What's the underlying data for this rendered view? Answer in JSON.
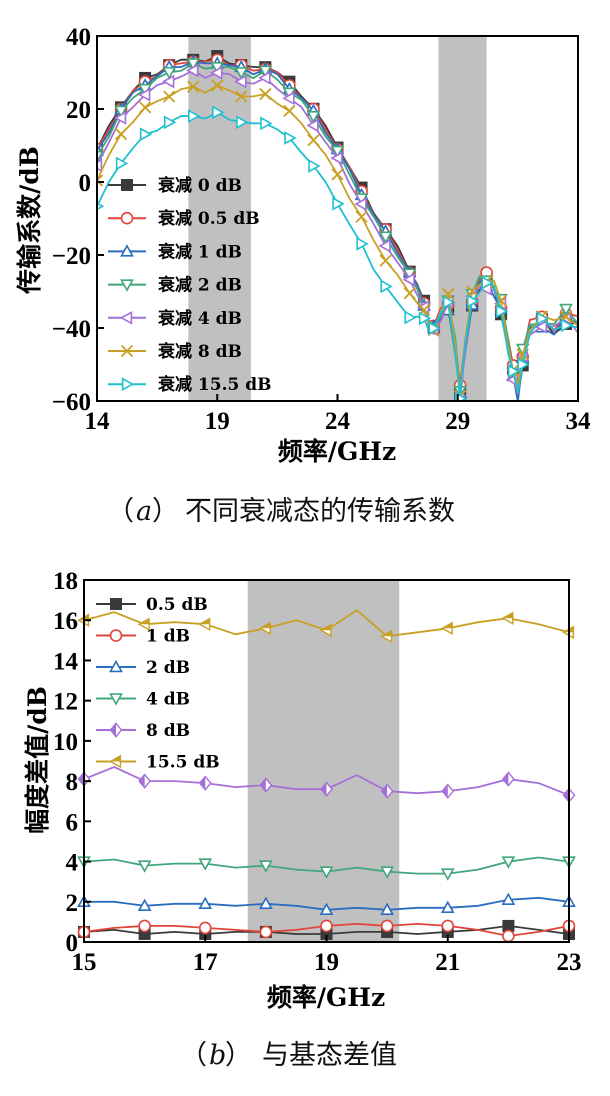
{
  "captions": {
    "a_label": "a",
    "a_text": "不同衰减态的传输系数",
    "b_label": "b",
    "b_text": "与基态差值"
  },
  "chart_data": [
    {
      "type": "line",
      "id": "a",
      "xlabel": "频率/GHz",
      "ylabel": "传输系数/dB",
      "xlim": [
        14,
        34
      ],
      "ylim": [
        -60,
        40
      ],
      "xticks": [
        "14",
        "19",
        "24",
        "29",
        "34"
      ],
      "yticks": [
        "−60",
        "−40",
        "−20",
        "0",
        "20",
        "40"
      ],
      "shaded_ranges": [
        [
          17.8,
          20.4
        ],
        [
          28.2,
          30.2
        ]
      ],
      "legend_position": "center-left",
      "base_x": [
        14,
        14.5,
        15,
        15.5,
        16,
        16.5,
        17,
        17.5,
        18,
        18.5,
        19,
        19.5,
        20,
        20.5,
        21,
        21.5,
        22,
        22.5,
        23,
        23.5,
        24,
        24.5,
        25,
        25.5,
        26,
        26.5,
        27,
        27.3,
        27.6,
        27.8,
        28
      ],
      "base_y": [
        9,
        15,
        21,
        25,
        28,
        30,
        32,
        33,
        34,
        33,
        34,
        33,
        32,
        31,
        32,
        30,
        27,
        24,
        20,
        15,
        10,
        4,
        -2,
        -8,
        -13,
        -18,
        -24,
        -28,
        -33,
        -38,
        -40
      ],
      "notch_x": [
        28,
        28.3,
        28.6,
        28.9,
        29.1,
        29.3,
        29.6,
        29.9,
        30.2,
        30.5,
        30.8,
        31.1,
        31.3,
        31.5,
        31.7,
        32,
        32.5,
        33,
        33.5,
        34
      ],
      "notch_y": [
        -40,
        -36,
        -33,
        -45,
        -58,
        -45,
        -32,
        -28,
        -27,
        -29,
        -34,
        -45,
        -52,
        -58,
        -48,
        -40,
        -38,
        -40,
        -37,
        -39
      ],
      "series": [
        {
          "name": "衰减 0 dB",
          "offset": 0,
          "color": "#3a3a3a",
          "marker": "square-filled"
        },
        {
          "name": "衰减 0.5 dB",
          "offset": -0.5,
          "color": "#e0443a",
          "marker": "circle-open"
        },
        {
          "name": "衰减 1 dB",
          "offset": -1,
          "color": "#2a6ebf",
          "marker": "triangle-up-open"
        },
        {
          "name": "衰减 2 dB",
          "offset": -2,
          "color": "#3fa77a",
          "marker": "triangle-down-open"
        },
        {
          "name": "衰减 4 dB",
          "offset": -4,
          "color": "#a56fd8",
          "marker": "triangle-left-open"
        },
        {
          "name": "衰减 8 dB",
          "offset": -8,
          "color": "#c8a024",
          "marker": "x-cross"
        },
        {
          "name": "衰减 15.5 dB",
          "offset": -15.5,
          "color": "#20c0d0",
          "marker": "triangle-right-open"
        }
      ]
    },
    {
      "type": "line",
      "id": "b",
      "xlabel": "频率/GHz",
      "ylabel": "幅度差值/dB",
      "xlim": [
        15,
        23
      ],
      "ylim": [
        0,
        18
      ],
      "xticks": [
        "15",
        "17",
        "19",
        "21",
        "23"
      ],
      "yticks": [
        "0",
        "2",
        "4",
        "6",
        "8",
        "10",
        "12",
        "14",
        "16",
        "18"
      ],
      "shaded_ranges": [
        [
          17.7,
          20.2
        ]
      ],
      "legend_position": "top-left",
      "x": [
        15,
        15.5,
        16,
        16.5,
        17,
        17.5,
        18,
        18.5,
        19,
        19.5,
        20,
        20.5,
        21,
        21.5,
        22,
        22.5,
        23
      ],
      "series": [
        {
          "name": "0.5 dB",
          "color": "#3a3a3a",
          "marker": "square-filled",
          "values": [
            0.5,
            0.6,
            0.4,
            0.5,
            0.4,
            0.5,
            0.5,
            0.4,
            0.4,
            0.5,
            0.5,
            0.4,
            0.5,
            0.6,
            0.8,
            0.6,
            0.4
          ]
        },
        {
          "name": "1 dB",
          "color": "#e0443a",
          "marker": "circle-open",
          "values": [
            0.5,
            0.7,
            0.8,
            0.8,
            0.7,
            0.6,
            0.5,
            0.6,
            0.8,
            0.9,
            0.8,
            0.9,
            0.8,
            0.6,
            0.3,
            0.5,
            0.8
          ]
        },
        {
          "name": "2 dB",
          "color": "#2a6ebf",
          "marker": "triangle-up-open",
          "values": [
            2.0,
            2.0,
            1.8,
            1.9,
            1.9,
            1.8,
            1.9,
            1.8,
            1.6,
            1.7,
            1.6,
            1.7,
            1.7,
            1.8,
            2.1,
            2.2,
            2.0
          ]
        },
        {
          "name": "4 dB",
          "color": "#3fa77a",
          "marker": "triangle-down-open",
          "values": [
            4.0,
            4.1,
            3.8,
            3.9,
            3.9,
            3.7,
            3.8,
            3.6,
            3.5,
            3.7,
            3.5,
            3.4,
            3.4,
            3.6,
            4.0,
            4.2,
            4.0
          ]
        },
        {
          "name": "8 dB",
          "color": "#a56fd8",
          "marker": "diamond-half",
          "values": [
            8.1,
            8.7,
            8.0,
            8.0,
            7.9,
            7.7,
            7.8,
            7.6,
            7.6,
            8.3,
            7.5,
            7.4,
            7.5,
            7.7,
            8.1,
            7.9,
            7.3
          ]
        },
        {
          "name": "15.5 dB",
          "color": "#c8a024",
          "marker": "triangle-left-half",
          "values": [
            16.0,
            16.4,
            15.8,
            15.9,
            15.8,
            15.3,
            15.6,
            16.0,
            15.5,
            16.5,
            15.2,
            15.4,
            15.6,
            15.9,
            16.1,
            15.8,
            15.4
          ]
        }
      ]
    }
  ]
}
